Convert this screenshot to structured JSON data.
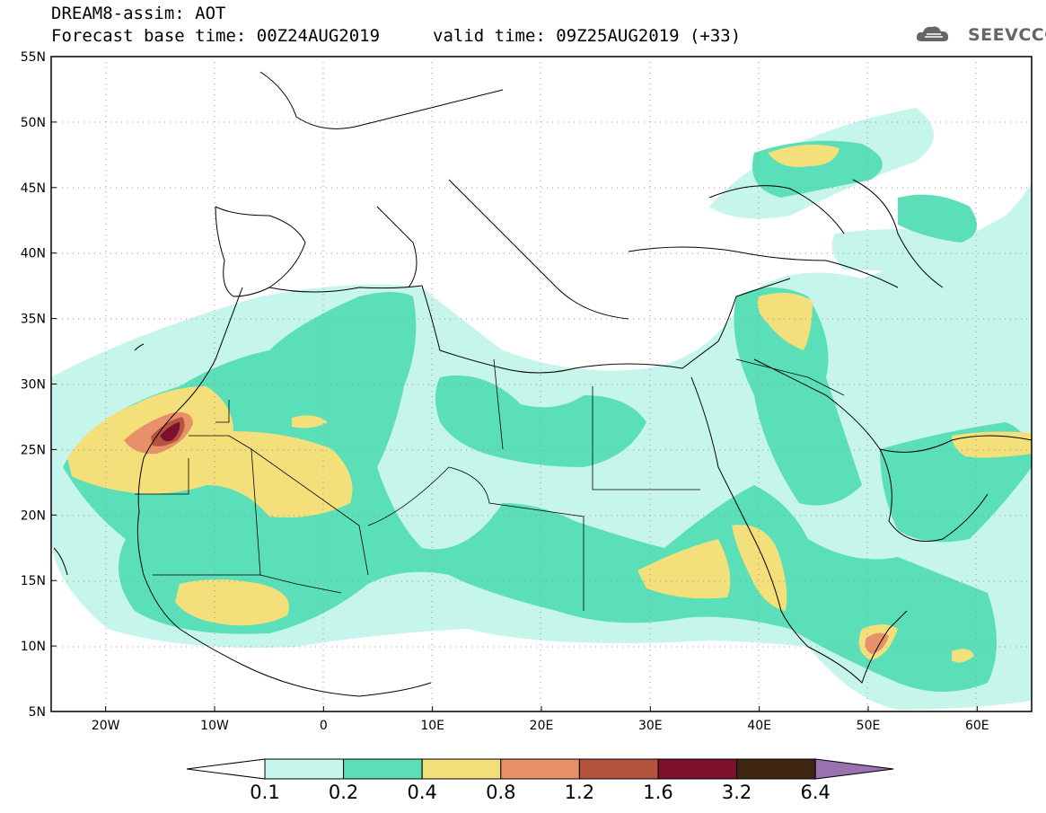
{
  "title": {
    "line1": "DREAM8-assim: AOT",
    "line2": "Forecast base time: 00Z24AUG2019",
    "valid": "valid time: 09Z25AUG2019 (+33)"
  },
  "logo": {
    "text": "SEEVCCC",
    "icon": "cloud-logo-icon"
  },
  "map": {
    "variable": "AOT",
    "lon_range": [
      -25,
      65
    ],
    "lat_range": [
      5,
      55
    ],
    "grid": true,
    "lat_ticks": [
      "55N",
      "50N",
      "45N",
      "40N",
      "35N",
      "30N",
      "25N",
      "20N",
      "15N",
      "10N",
      "5N"
    ],
    "lon_ticks": [
      "20W",
      "10W",
      "0",
      "10E",
      "20E",
      "30E",
      "40E",
      "50E",
      "60E"
    ]
  },
  "colorbar": {
    "levels": [
      "0.1",
      "0.2",
      "0.4",
      "0.8",
      "1.2",
      "1.6",
      "3.2",
      "6.4"
    ],
    "colors": [
      "#c6f5ec",
      "#5bdfb8",
      "#f4e07a",
      "#e8906a",
      "#b5533f",
      "#7b0f2c",
      "#3e2512",
      "#9b72b0"
    ],
    "under_color": "#ffffff"
  }
}
